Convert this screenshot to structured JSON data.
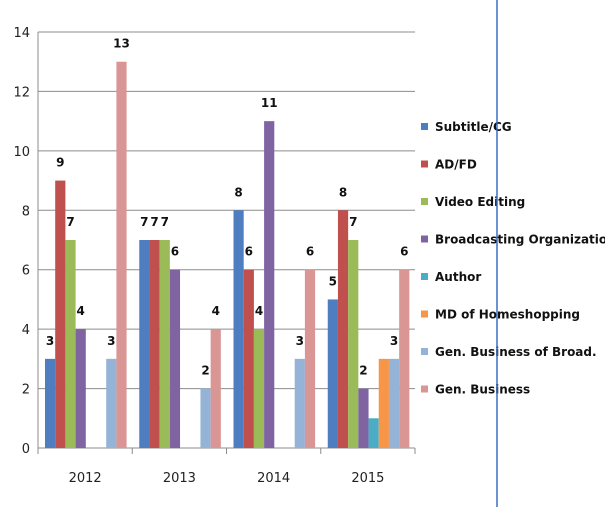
{
  "chart_data": {
    "type": "bar",
    "categories": [
      "2012",
      "2013",
      "2014",
      "2015"
    ],
    "ylim": [
      0,
      14
    ],
    "yticks": [
      0,
      2,
      4,
      6,
      8,
      10,
      12,
      14
    ],
    "grid": true,
    "legend_position": "right",
    "series": [
      {
        "name": "Subtitle/CG",
        "color": "#4f7ec0",
        "values": [
          3,
          7,
          8,
          5
        ]
      },
      {
        "name": "AD/FD",
        "color": "#c0504d",
        "values": [
          9,
          7,
          6,
          8
        ]
      },
      {
        "name": "Video Editing",
        "color": "#9bbb59",
        "values": [
          7,
          7,
          4,
          7
        ]
      },
      {
        "name": "Broadcasting Organization",
        "color": "#8064a2",
        "values": [
          4,
          6,
          11,
          2
        ]
      },
      {
        "name": "Author",
        "color": "#4bacc6",
        "values": [
          0,
          0,
          0,
          1
        ]
      },
      {
        "name": "MD of Homeshopping",
        "color": "#f79646",
        "values": [
          0,
          0,
          0,
          3
        ]
      },
      {
        "name": "Gen. Business of Broad.",
        "color": "#95b3d7",
        "values": [
          3,
          2,
          3,
          3
        ]
      },
      {
        "name": "Gen. Business",
        "color": "#d99694",
        "values": [
          13,
          4,
          6,
          6
        ]
      }
    ],
    "data_labels": [
      [
        "3",
        "9",
        "7",
        "4",
        "",
        "",
        "3",
        "13"
      ],
      [
        "7",
        "7",
        "7",
        "6",
        "",
        "",
        "2",
        "4"
      ],
      [
        "8",
        "6",
        "4",
        "11",
        "",
        "",
        "3",
        "6"
      ],
      [
        "5",
        "8",
        "7",
        "2",
        "",
        "",
        "3",
        "6"
      ]
    ]
  }
}
